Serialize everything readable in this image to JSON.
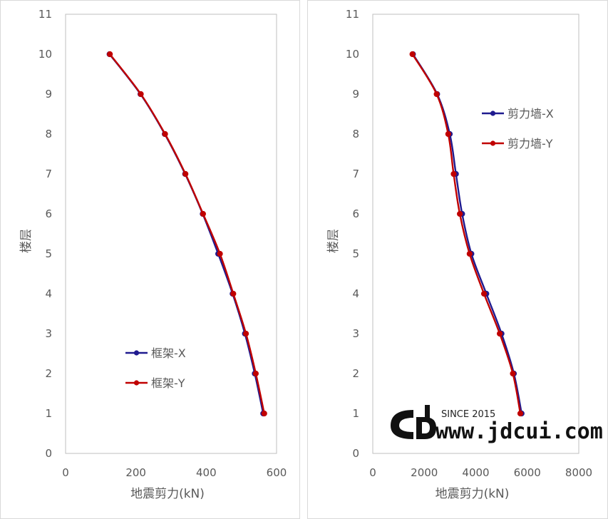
{
  "colors": {
    "x_series": "#1f1a8f",
    "y_series": "#c00000",
    "axis": "#bfbfbf",
    "text": "#595959"
  },
  "watermark": {
    "since": "SINCE 2015",
    "url": "www.jdcui.com"
  },
  "chart_data": [
    {
      "type": "line",
      "xlabel": "地震剪力(kN)",
      "ylabel": "楼层",
      "xlim": [
        0,
        600
      ],
      "ylim": [
        0,
        11
      ],
      "xticks": [
        "0",
        "200",
        "400",
        "600"
      ],
      "yticks": [
        "0",
        "1",
        "2",
        "3",
        "4",
        "5",
        "6",
        "7",
        "8",
        "9",
        "10",
        "11"
      ],
      "grid": false,
      "legend_position": "bottom-center",
      "series": [
        {
          "name": "框架-X",
          "x": [
            562,
            538,
            510,
            475,
            434,
            390,
            340,
            282,
            213,
            125
          ],
          "y": [
            1,
            2,
            3,
            4,
            5,
            6,
            7,
            8,
            9,
            10
          ]
        },
        {
          "name": "框架-Y",
          "x": [
            565,
            541,
            513,
            477,
            439,
            391,
            341,
            283,
            214,
            126
          ],
          "y": [
            1,
            2,
            3,
            4,
            5,
            6,
            7,
            8,
            9,
            10
          ]
        }
      ]
    },
    {
      "type": "line",
      "xlabel": "地震剪力(kN)",
      "ylabel": "楼层",
      "xlim": [
        0,
        8000
      ],
      "ylim": [
        0,
        11
      ],
      "xticks": [
        "0",
        "2000",
        "4000",
        "6000",
        "8000"
      ],
      "yticks": [
        "0",
        "1",
        "2",
        "3",
        "4",
        "5",
        "6",
        "7",
        "8",
        "9",
        "10",
        "11"
      ],
      "grid": false,
      "legend_position": "top-right",
      "series": [
        {
          "name": "剪力墙-X",
          "x": [
            5780,
            5480,
            5000,
            4410,
            3830,
            3470,
            3230,
            2990,
            2500,
            1560
          ],
          "y": [
            1,
            2,
            3,
            4,
            5,
            6,
            7,
            8,
            9,
            10
          ]
        },
        {
          "name": "剪力墙-Y",
          "x": [
            5730,
            5440,
            4930,
            4320,
            3760,
            3380,
            3140,
            2930,
            2480,
            1540
          ],
          "y": [
            1,
            2,
            3,
            4,
            5,
            6,
            7,
            8,
            9,
            10
          ]
        }
      ]
    }
  ]
}
